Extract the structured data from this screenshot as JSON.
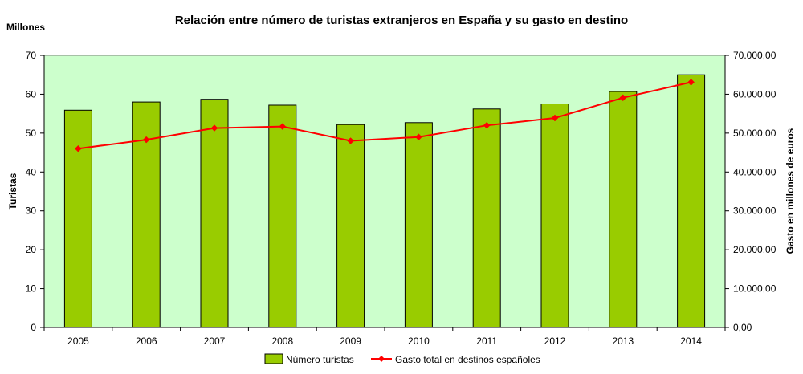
{
  "chart_data": {
    "type": "bar",
    "title": "Relación entre número de turistas extranjeros en España y su gasto en destino",
    "y_unit": "Millones",
    "ylabel": "Turistas",
    "y2label": "Gasto en millones de euros",
    "categories": [
      "2005",
      "2006",
      "2007",
      "2008",
      "2009",
      "2010",
      "2011",
      "2012",
      "2013",
      "2014"
    ],
    "ylim": [
      0,
      70
    ],
    "yticks": [
      "0",
      "10",
      "20",
      "30",
      "40",
      "50",
      "60",
      "70"
    ],
    "y2lim": [
      0,
      70000
    ],
    "y2ticks": [
      "0,00",
      "10.000,00",
      "20.000,00",
      "30.000,00",
      "40.000,00",
      "50.000,00",
      "60.000,00",
      "70.000,00"
    ],
    "series": [
      {
        "name": "Número turistas",
        "type": "bar",
        "axis": "left",
        "color": "#99CC00",
        "values": [
          55.9,
          58.0,
          58.7,
          57.2,
          52.2,
          52.7,
          56.2,
          57.5,
          60.7,
          65.0
        ]
      },
      {
        "name": "Gasto total en destinos españoles",
        "type": "line",
        "axis": "right",
        "color": "#FF0000",
        "values": [
          46000,
          48300,
          51300,
          51700,
          48000,
          49000,
          52000,
          53900,
          59100,
          63100
        ]
      }
    ],
    "plot_background": "#CCFFCC",
    "grid": false,
    "legend_position": "bottom"
  }
}
